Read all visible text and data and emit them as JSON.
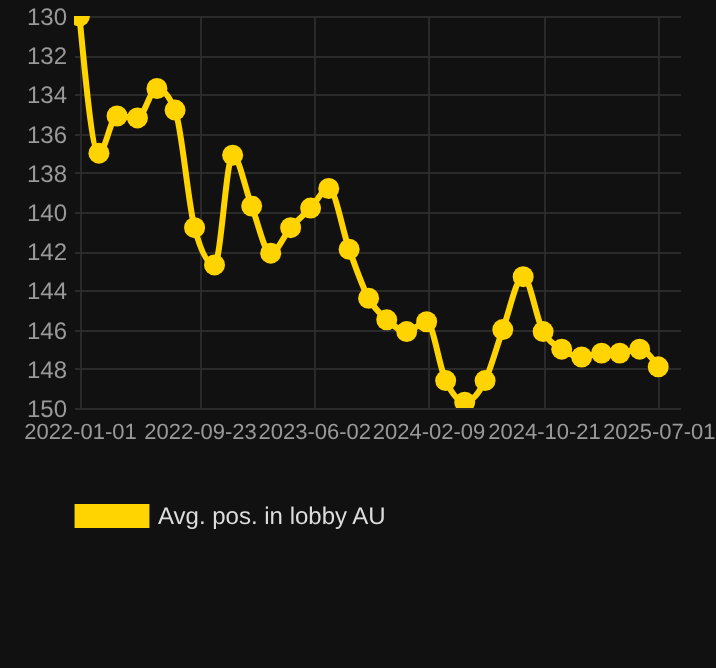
{
  "chart_data": {
    "type": "line",
    "x": [
      "2022-01-01",
      "2022-02-13",
      "2022-03-25",
      "2022-05-09",
      "2022-06-21",
      "2022-07-31",
      "2022-09-12",
      "2022-10-26",
      "2022-12-05",
      "2023-01-16",
      "2023-02-27",
      "2023-04-12",
      "2023-05-26",
      "2023-07-05",
      "2023-08-19",
      "2023-10-01",
      "2023-11-10",
      "2023-12-24",
      "2024-02-06",
      "2024-03-19",
      "2024-04-30",
      "2024-06-14",
      "2024-07-23",
      "2024-09-06",
      "2024-10-20",
      "2024-11-30",
      "2025-01-13",
      "2025-02-26",
      "2025-04-07",
      "2025-05-21",
      "2025-07-01"
    ],
    "series": [
      {
        "name": "Avg. pos. in lobby AU",
        "color": "#ffd400",
        "values": [
          130.0,
          137.0,
          135.1,
          135.2,
          133.7,
          134.8,
          140.8,
          142.7,
          137.1,
          139.7,
          142.1,
          140.8,
          139.8,
          138.8,
          141.9,
          144.4,
          145.5,
          146.1,
          145.6,
          148.6,
          149.7,
          148.6,
          146.0,
          143.3,
          146.1,
          147.0,
          147.4,
          147.2,
          147.2,
          147.0,
          147.9
        ]
      }
    ],
    "xlim": [
      "2021-12-20",
      "2025-08-18"
    ],
    "xticks": [
      "2022-01-01",
      "2022-09-23",
      "2023-06-02",
      "2024-02-09",
      "2024-10-21",
      "2025-07-01"
    ],
    "ylim": [
      150,
      130
    ],
    "yticks": [
      130,
      132,
      134,
      136,
      138,
      140,
      142,
      144,
      146,
      148,
      150
    ],
    "grid": true,
    "legend": "bottom",
    "marker": "circle",
    "line_style": "solid"
  }
}
